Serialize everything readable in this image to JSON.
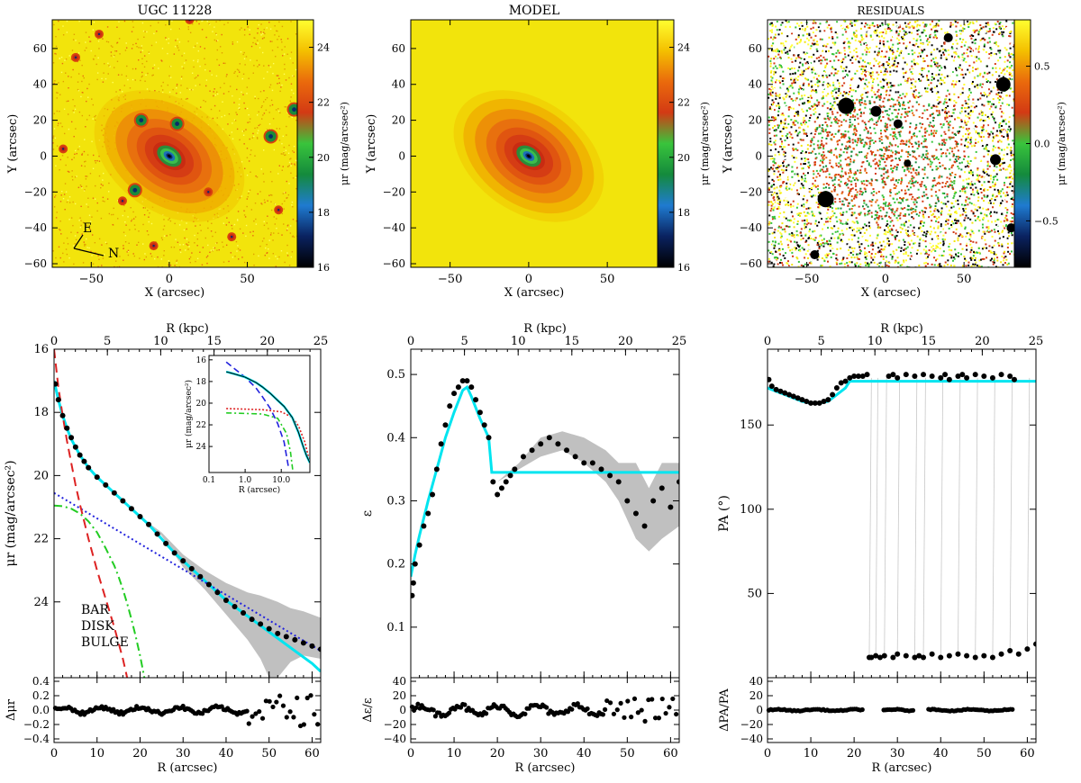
{
  "colors": {
    "cmap": [
      "#000000",
      "#0a2260",
      "#1f7bd0",
      "#148a3c",
      "#39c43c",
      "#d33a14",
      "#ea6a0c",
      "#f4c000",
      "#ffff30"
    ],
    "data_black": "#000000",
    "fit": "#00e5f0",
    "band": "#c0c0c0",
    "bar": "#22cc22",
    "disk": "#2222dd",
    "bulge": "#dd2222",
    "dot_red": "#dd2222"
  },
  "chart_data": [
    {
      "type": "heatmap",
      "name": "image",
      "title": "UGC 11228",
      "xlabel": "X (arcsec)",
      "ylabel": "Y (arcsec)",
      "xlim": [
        -75,
        82
      ],
      "ylim": [
        -62,
        76
      ],
      "xticks": [
        -50,
        0,
        50
      ],
      "yticks": [
        -60,
        -40,
        -20,
        0,
        20,
        40,
        60
      ],
      "colorbar": {
        "label": "μr (mag/arcsec²)",
        "ticks": [
          16,
          18,
          20,
          22,
          24
        ],
        "range": [
          16,
          25
        ]
      },
      "compass": {
        "east": "E",
        "north": "N"
      },
      "sources": [
        [
          -18,
          20
        ],
        [
          5,
          18
        ],
        [
          -22,
          -19
        ],
        [
          65,
          11
        ],
        [
          80,
          26
        ],
        [
          13,
          76
        ],
        [
          -68,
          4
        ],
        [
          -60,
          55
        ],
        [
          -45,
          68
        ],
        [
          70,
          -30
        ],
        [
          -30,
          -25
        ],
        [
          40,
          -45
        ],
        [
          -10,
          -50
        ],
        [
          25,
          -20
        ]
      ]
    },
    {
      "type": "heatmap",
      "name": "model",
      "title": "MODEL",
      "xlabel": "X (arcsec)",
      "ylabel": "Y (arcsec)",
      "xlim": [
        -75,
        82
      ],
      "ylim": [
        -62,
        76
      ],
      "xticks": [
        -50,
        0,
        50
      ],
      "yticks": [
        -60,
        -40,
        -20,
        0,
        20,
        40,
        60
      ],
      "colorbar": {
        "label": "μr (mag/arcsec²)",
        "ticks": [
          16,
          18,
          20,
          22,
          24
        ],
        "range": [
          16,
          25
        ]
      }
    },
    {
      "type": "heatmap",
      "name": "residuals",
      "title": "RESIDUALS",
      "xlabel": "X (arcsec)",
      "ylabel": "Y (arcsec)",
      "xlim": [
        -75,
        82
      ],
      "ylim": [
        -62,
        76
      ],
      "xticks": [
        -50,
        0,
        50
      ],
      "yticks": [
        -60,
        -40,
        -20,
        0,
        20,
        40,
        60
      ],
      "colorbar": {
        "label": "μr (mag/arcsec²)",
        "ticks": [
          -0.5,
          0.0,
          0.5
        ],
        "tick_labels": [
          "−0.5",
          "0.0",
          "0.5"
        ],
        "range": [
          -0.8,
          0.8
        ]
      }
    },
    {
      "type": "line",
      "name": "surface-brightness-profile",
      "xlabel": "R (arcsec)",
      "xlabel_top": "R (kpc)",
      "ylabel": "μr (mag/arcsec²)",
      "xlim": [
        0,
        62
      ],
      "ylim": [
        26.4,
        16
      ],
      "xticks": [
        0,
        10,
        20,
        30,
        40,
        50,
        60
      ],
      "yticks": [
        16,
        18,
        20,
        22,
        24
      ],
      "top_xticks_kpc": [
        0,
        5,
        10,
        15,
        20,
        25
      ],
      "kpc_max": 25,
      "series": [
        {
          "name": "data",
          "x": [
            0.3,
            1,
            2,
            3,
            4,
            5,
            6,
            7,
            8,
            10,
            12,
            14,
            16,
            18,
            20,
            22,
            24,
            26,
            28,
            30,
            32,
            34,
            36,
            38,
            40,
            42,
            44,
            46,
            48,
            50,
            52,
            54,
            56,
            58,
            60,
            62
          ],
          "y": [
            17.1,
            17.6,
            18.1,
            18.5,
            18.8,
            19.1,
            19.35,
            19.55,
            19.75,
            20.05,
            20.3,
            20.55,
            20.8,
            21.05,
            21.3,
            21.55,
            21.85,
            22.15,
            22.45,
            22.7,
            22.95,
            23.2,
            23.45,
            23.7,
            23.95,
            24.15,
            24.35,
            24.55,
            24.7,
            24.85,
            25.0,
            25.1,
            25.2,
            25.3,
            25.4,
            25.5
          ]
        },
        {
          "name": "fit",
          "x": [
            0,
            1,
            2,
            3,
            4,
            5,
            6,
            7,
            8,
            10,
            12,
            14,
            16,
            18,
            20,
            22,
            24,
            26,
            28,
            30,
            32,
            34,
            36,
            38,
            40,
            42,
            44,
            46,
            48,
            50,
            52,
            54,
            56,
            58,
            60,
            62
          ],
          "y": [
            17.0,
            17.6,
            18.1,
            18.5,
            18.85,
            19.1,
            19.35,
            19.55,
            19.75,
            20.05,
            20.3,
            20.55,
            20.8,
            21.05,
            21.3,
            21.55,
            21.85,
            22.15,
            22.45,
            22.7,
            22.95,
            23.2,
            23.45,
            23.7,
            23.95,
            24.15,
            24.35,
            24.55,
            24.75,
            24.95,
            25.15,
            25.35,
            25.55,
            25.75,
            25.95,
            26.2
          ]
        },
        {
          "name": "BAR",
          "x": [
            0,
            2,
            4,
            6,
            8,
            10,
            12,
            14,
            15,
            16,
            17,
            18,
            19,
            20,
            20.5,
            21
          ],
          "y": [
            20.95,
            20.97,
            21.05,
            21.2,
            21.45,
            21.8,
            22.3,
            22.85,
            23.2,
            23.6,
            24.05,
            24.55,
            25.1,
            25.7,
            26.05,
            26.4
          ]
        },
        {
          "name": "DISK",
          "x": [
            0,
            62
          ],
          "y": [
            20.55,
            25.55
          ]
        },
        {
          "name": "BULGE",
          "x": [
            0,
            1,
            2,
            3,
            4,
            5,
            6,
            8,
            10,
            12,
            14,
            16,
            17
          ],
          "y": [
            16.0,
            17.2,
            18.1,
            18.9,
            19.6,
            20.3,
            20.9,
            22.0,
            23.0,
            23.9,
            24.8,
            25.8,
            26.4
          ]
        }
      ],
      "error_band": {
        "x": [
          20,
          25,
          30,
          35,
          40,
          45,
          48,
          50,
          52,
          55,
          58,
          62
        ],
        "lo": [
          21.3,
          21.8,
          22.5,
          23.0,
          23.4,
          23.7,
          23.8,
          23.9,
          24.0,
          24.2,
          24.3,
          24.5
        ],
        "hi": [
          21.3,
          21.9,
          22.9,
          23.6,
          24.4,
          25.2,
          25.8,
          26.4,
          26.4,
          25.9,
          25.7,
          25.8
        ]
      },
      "legend": {
        "bar": "BAR",
        "disk": "DISK",
        "bulge": "BULGE"
      },
      "inset": {
        "xlabel": "R (arcsec)",
        "ylabel": "μr (mag/arcsec²)",
        "xticks": [
          0.1,
          1.0,
          10.0
        ],
        "xtick_labels": [
          "0.1",
          "1.0",
          "10.0"
        ],
        "yticks": [
          16,
          18,
          20,
          22,
          24
        ],
        "xlim_log": [
          0.1,
          62
        ],
        "ylim": [
          26.4,
          15.6
        ],
        "data": {
          "x": [
            0.3,
            0.5,
            1,
            2,
            3,
            5,
            8,
            12,
            20,
            30,
            40,
            50,
            62
          ],
          "y": [
            17.1,
            17.3,
            17.6,
            18.1,
            18.5,
            19.1,
            19.75,
            20.3,
            21.3,
            22.7,
            23.95,
            24.85,
            25.5
          ]
        },
        "disk": {
          "x": [
            0.3,
            0.5,
            1,
            2,
            3,
            5,
            8,
            12,
            16
          ],
          "y": [
            16.2,
            16.8,
            17.6,
            18.6,
            19.4,
            20.5,
            21.9,
            23.6,
            26.0
          ]
        },
        "bar": {
          "x": [
            0.3,
            1,
            3,
            8,
            14,
            18,
            21
          ],
          "y": [
            20.9,
            20.95,
            21.0,
            21.4,
            22.8,
            24.5,
            26.3
          ]
        },
        "bulge": {
          "x": [
            0.3,
            1,
            3,
            10,
            20,
            30,
            45,
            62
          ],
          "y": [
            20.5,
            20.55,
            20.6,
            20.8,
            21.3,
            22.1,
            23.6,
            25.5
          ]
        }
      },
      "residual": {
        "ylabel": "Δμr",
        "ylim": [
          -0.45,
          0.45
        ],
        "yticks": [
          -0.4,
          -0.2,
          0.0,
          0.2,
          0.4
        ],
        "ytick_labels": [
          "−0.4",
          "−0.2",
          "0.0",
          "0.2",
          "0.4"
        ],
        "amp": 0.05,
        "scatter_from": 45,
        "scatter_amp": 0.22
      }
    },
    {
      "type": "line",
      "name": "ellipticity-profile",
      "xlabel": "R (arcsec)",
      "xlabel_top": "R (kpc)",
      "ylabel": "ε",
      "xlim": [
        0,
        62
      ],
      "ylim": [
        0.02,
        0.54
      ],
      "xticks": [
        0,
        10,
        20,
        30,
        40,
        50,
        60
      ],
      "yticks": [
        0.1,
        0.2,
        0.3,
        0.4,
        0.5
      ],
      "top_xticks_kpc": [
        0,
        5,
        10,
        15,
        20,
        25
      ],
      "kpc_max": 25,
      "series": [
        {
          "name": "data",
          "x": [
            0.3,
            0.6,
            1,
            2,
            3,
            4,
            5,
            6,
            7,
            8,
            9,
            10,
            11,
            12,
            13,
            14,
            15,
            16,
            17,
            18,
            19,
            20,
            21,
            22,
            23,
            24,
            26,
            28,
            30,
            32,
            34,
            36,
            38,
            40,
            42,
            44,
            46,
            48,
            50,
            52,
            54,
            56,
            58,
            60,
            62
          ],
          "y": [
            0.15,
            0.17,
            0.2,
            0.23,
            0.26,
            0.28,
            0.31,
            0.35,
            0.39,
            0.42,
            0.45,
            0.47,
            0.48,
            0.49,
            0.49,
            0.48,
            0.46,
            0.44,
            0.42,
            0.4,
            0.33,
            0.31,
            0.32,
            0.33,
            0.34,
            0.35,
            0.37,
            0.38,
            0.39,
            0.4,
            0.39,
            0.38,
            0.37,
            0.36,
            0.36,
            0.35,
            0.34,
            0.33,
            0.3,
            0.28,
            0.26,
            0.3,
            0.32,
            0.29,
            0.33
          ]
        },
        {
          "name": "fit",
          "x": [
            0,
            1,
            2,
            4,
            6,
            8,
            10,
            12,
            13,
            14,
            16,
            18,
            18.7,
            19,
            25,
            30,
            40,
            50,
            62
          ],
          "y": [
            0.18,
            0.215,
            0.245,
            0.3,
            0.35,
            0.4,
            0.44,
            0.475,
            0.48,
            0.465,
            0.43,
            0.4,
            0.345,
            0.345,
            0.345,
            0.345,
            0.345,
            0.345,
            0.345
          ]
        }
      ],
      "error_band": {
        "x": [
          20,
          25,
          30,
          35,
          40,
          45,
          48,
          52,
          55,
          58,
          62
        ],
        "lo": [
          0.33,
          0.35,
          0.37,
          0.38,
          0.36,
          0.33,
          0.3,
          0.24,
          0.22,
          0.24,
          0.26
        ],
        "hi": [
          0.33,
          0.36,
          0.4,
          0.41,
          0.4,
          0.38,
          0.36,
          0.36,
          0.32,
          0.36,
          0.36
        ]
      },
      "residual": {
        "ylabel": "Δε/ε",
        "ylim": [
          -45,
          45
        ],
        "yticks": [
          -40,
          -20,
          0,
          20,
          40
        ],
        "ytick_labels": [
          "−40",
          "−20",
          "0",
          "20",
          "40"
        ],
        "amp": 8,
        "scatter_from": 45,
        "scatter_amp": 18
      }
    },
    {
      "type": "line",
      "name": "position-angle-profile",
      "xlabel": "R (arcsec)",
      "xlabel_top": "R (kpc)",
      "ylabel": "PA (°)",
      "xlim": [
        0,
        62
      ],
      "ylim": [
        0,
        195
      ],
      "xticks": [
        0,
        10,
        20,
        30,
        40,
        50,
        60
      ],
      "yticks": [
        50,
        100,
        150
      ],
      "top_xticks_kpc": [
        0,
        5,
        10,
        15,
        20,
        25
      ],
      "kpc_max": 25,
      "series": [
        {
          "name": "data",
          "x": [
            0.3,
            1,
            2,
            3,
            4,
            5,
            6,
            7,
            8,
            9,
            10,
            11,
            12,
            13,
            14,
            15,
            16,
            17,
            18,
            19,
            20,
            21,
            22,
            23,
            28,
            29,
            30,
            32,
            34,
            36,
            38,
            40,
            41,
            42,
            44,
            45,
            46,
            48,
            50,
            52,
            54,
            56,
            57
          ],
          "y": [
            177,
            173,
            171,
            170,
            169,
            168,
            167,
            166,
            165,
            164,
            163,
            163,
            163,
            164,
            165,
            168,
            172,
            175,
            176,
            178,
            179,
            179,
            179,
            180,
            179,
            180,
            178,
            180,
            179,
            180,
            179,
            178,
            180,
            177,
            179,
            180,
            178,
            180,
            179,
            178,
            180,
            179,
            177
          ]
        },
        {
          "name": "fit",
          "x": [
            0,
            2,
            4,
            6,
            8,
            10,
            12,
            14,
            16,
            18,
            19,
            30,
            40,
            50,
            62
          ],
          "y": [
            172,
            170,
            168,
            166,
            164,
            163,
            163,
            164,
            168,
            172,
            176,
            176,
            176,
            176,
            176
          ]
        },
        {
          "name": "flipped",
          "x": [
            23.5,
            24,
            25,
            26,
            27,
            29,
            30,
            32,
            34,
            35,
            36,
            38,
            40,
            42,
            44,
            46,
            48,
            50,
            52,
            54,
            56,
            58,
            60,
            62
          ],
          "y": [
            12,
            12,
            13,
            12,
            13,
            12,
            14,
            13,
            12,
            13,
            12,
            14,
            12,
            13,
            14,
            13,
            12,
            13,
            12,
            14,
            16,
            14,
            17,
            20
          ]
        }
      ],
      "residual": {
        "ylabel": "ΔPA/PA",
        "ylim": [
          -45,
          45
        ],
        "yticks": [
          -40,
          -20,
          0,
          20,
          40
        ],
        "ytick_labels": [
          "−40",
          "−20",
          "0",
          "20",
          "40"
        ],
        "amp": 1.2,
        "scatter_from": 62,
        "scatter_amp": 2
      }
    }
  ]
}
